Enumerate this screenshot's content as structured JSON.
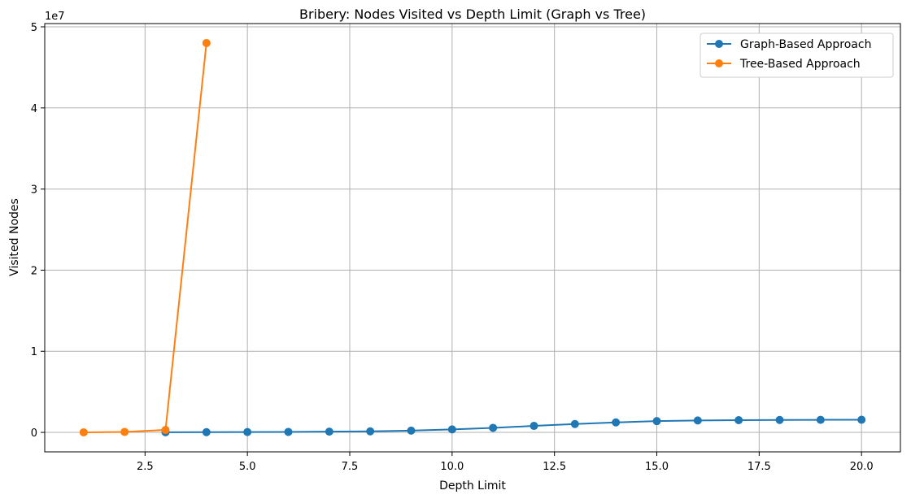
{
  "chart_data": {
    "type": "line",
    "title": "Bribery: Nodes Visited vs Depth Limit (Graph vs Tree)",
    "xlabel": "Depth Limit",
    "ylabel": "Visited Nodes",
    "y_offset_label": "1e7",
    "xlim": [
      0.05,
      20.95
    ],
    "ylim": [
      -2400000,
      50400000
    ],
    "x_ticks": [
      2.5,
      5.0,
      7.5,
      10.0,
      12.5,
      15.0,
      17.5,
      20.0
    ],
    "x_tick_labels": [
      "2.5",
      "5.0",
      "7.5",
      "10.0",
      "12.5",
      "15.0",
      "17.5",
      "20.0"
    ],
    "y_ticks": [
      0,
      10000000,
      20000000,
      30000000,
      40000000,
      50000000
    ],
    "y_tick_labels": [
      "0",
      "1",
      "2",
      "3",
      "4",
      "5"
    ],
    "grid": true,
    "legend_position": "top-right",
    "series": [
      {
        "name": "Graph-Based Approach",
        "color": "#1f77b4",
        "marker": "circle",
        "x": [
          3,
          4,
          5,
          6,
          7,
          8,
          9,
          10,
          11,
          12,
          13,
          14,
          15,
          16,
          17,
          18,
          19,
          20
        ],
        "y": [
          20000,
          30000,
          40000,
          60000,
          90000,
          130000,
          220000,
          370000,
          560000,
          800000,
          1030000,
          1230000,
          1390000,
          1470000,
          1510000,
          1530000,
          1550000,
          1560000
        ]
      },
      {
        "name": "Tree-Based Approach",
        "color": "#ff7f0e",
        "marker": "circle",
        "x": [
          1,
          2,
          3,
          4
        ],
        "y": [
          10000,
          60000,
          300000,
          48000000
        ]
      }
    ]
  }
}
